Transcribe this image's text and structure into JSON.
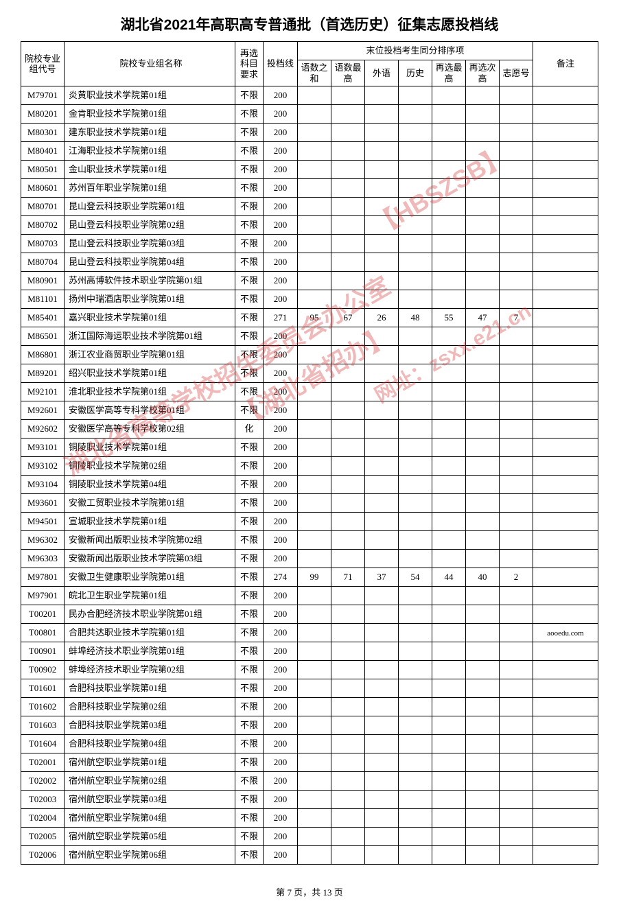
{
  "title": "湖北省2021年高职高专普通批（首选历史）征集志愿投档线",
  "headers": {
    "code": "院校专业组代号",
    "name": "院校专业组名称",
    "requirement": "再选科目要求",
    "score": "投档线",
    "tieGroup": "末位投档考生同分排序项",
    "tieSub": {
      "yushuSum": "语数之和",
      "yushuMax": "语数最高",
      "foreign": "外语",
      "history": "历史",
      "reselMax": "再选最高",
      "reselSecond": "再选次高",
      "wishNo": "志愿号"
    },
    "note": "备注"
  },
  "rows": [
    {
      "code": "M79701",
      "name": "炎黄职业技术学院第01组",
      "req": "不限",
      "score": "200",
      "c1": "",
      "c2": "",
      "c3": "",
      "c4": "",
      "c5": "",
      "c6": "",
      "c7": "",
      "note": ""
    },
    {
      "code": "M80201",
      "name": "金肯职业技术学院第01组",
      "req": "不限",
      "score": "200",
      "c1": "",
      "c2": "",
      "c3": "",
      "c4": "",
      "c5": "",
      "c6": "",
      "c7": "",
      "note": ""
    },
    {
      "code": "M80301",
      "name": "建东职业技术学院第01组",
      "req": "不限",
      "score": "200",
      "c1": "",
      "c2": "",
      "c3": "",
      "c4": "",
      "c5": "",
      "c6": "",
      "c7": "",
      "note": ""
    },
    {
      "code": "M80401",
      "name": "江海职业技术学院第01组",
      "req": "不限",
      "score": "200",
      "c1": "",
      "c2": "",
      "c3": "",
      "c4": "",
      "c5": "",
      "c6": "",
      "c7": "",
      "note": ""
    },
    {
      "code": "M80501",
      "name": "金山职业技术学院第01组",
      "req": "不限",
      "score": "200",
      "c1": "",
      "c2": "",
      "c3": "",
      "c4": "",
      "c5": "",
      "c6": "",
      "c7": "",
      "note": ""
    },
    {
      "code": "M80601",
      "name": "苏州百年职业学院第01组",
      "req": "不限",
      "score": "200",
      "c1": "",
      "c2": "",
      "c3": "",
      "c4": "",
      "c5": "",
      "c6": "",
      "c7": "",
      "note": ""
    },
    {
      "code": "M80701",
      "name": "昆山登云科技职业学院第01组",
      "req": "不限",
      "score": "200",
      "c1": "",
      "c2": "",
      "c3": "",
      "c4": "",
      "c5": "",
      "c6": "",
      "c7": "",
      "note": ""
    },
    {
      "code": "M80702",
      "name": "昆山登云科技职业学院第02组",
      "req": "不限",
      "score": "200",
      "c1": "",
      "c2": "",
      "c3": "",
      "c4": "",
      "c5": "",
      "c6": "",
      "c7": "",
      "note": ""
    },
    {
      "code": "M80703",
      "name": "昆山登云科技职业学院第03组",
      "req": "不限",
      "score": "200",
      "c1": "",
      "c2": "",
      "c3": "",
      "c4": "",
      "c5": "",
      "c6": "",
      "c7": "",
      "note": ""
    },
    {
      "code": "M80704",
      "name": "昆山登云科技职业学院第04组",
      "req": "不限",
      "score": "200",
      "c1": "",
      "c2": "",
      "c3": "",
      "c4": "",
      "c5": "",
      "c6": "",
      "c7": "",
      "note": ""
    },
    {
      "code": "M80901",
      "name": "苏州高博软件技术职业学院第01组",
      "req": "不限",
      "score": "200",
      "c1": "",
      "c2": "",
      "c3": "",
      "c4": "",
      "c5": "",
      "c6": "",
      "c7": "",
      "note": ""
    },
    {
      "code": "M81101",
      "name": "扬州中瑞酒店职业学院第01组",
      "req": "不限",
      "score": "200",
      "c1": "",
      "c2": "",
      "c3": "",
      "c4": "",
      "c5": "",
      "c6": "",
      "c7": "",
      "note": ""
    },
    {
      "code": "M85401",
      "name": "嘉兴职业技术学院第01组",
      "req": "不限",
      "score": "271",
      "c1": "95",
      "c2": "67",
      "c3": "26",
      "c4": "48",
      "c5": "55",
      "c6": "47",
      "c7": "7",
      "note": ""
    },
    {
      "code": "M86501",
      "name": "浙江国际海运职业技术学院第01组",
      "req": "不限",
      "score": "200",
      "c1": "",
      "c2": "",
      "c3": "",
      "c4": "",
      "c5": "",
      "c6": "",
      "c7": "",
      "note": ""
    },
    {
      "code": "M86801",
      "name": "浙江农业商贸职业学院第01组",
      "req": "不限",
      "score": "200",
      "c1": "",
      "c2": "",
      "c3": "",
      "c4": "",
      "c5": "",
      "c6": "",
      "c7": "",
      "note": ""
    },
    {
      "code": "M89201",
      "name": "绍兴职业技术学院第01组",
      "req": "不限",
      "score": "200",
      "c1": "",
      "c2": "",
      "c3": "",
      "c4": "",
      "c5": "",
      "c6": "",
      "c7": "",
      "note": ""
    },
    {
      "code": "M92101",
      "name": "淮北职业技术学院第01组",
      "req": "不限",
      "score": "200",
      "c1": "",
      "c2": "",
      "c3": "",
      "c4": "",
      "c5": "",
      "c6": "",
      "c7": "",
      "note": ""
    },
    {
      "code": "M92601",
      "name": "安徽医学高等专科学校第01组",
      "req": "不限",
      "score": "200",
      "c1": "",
      "c2": "",
      "c3": "",
      "c4": "",
      "c5": "",
      "c6": "",
      "c7": "",
      "note": ""
    },
    {
      "code": "M92602",
      "name": "安徽医学高等专科学校第02组",
      "req": "化",
      "score": "200",
      "c1": "",
      "c2": "",
      "c3": "",
      "c4": "",
      "c5": "",
      "c6": "",
      "c7": "",
      "note": ""
    },
    {
      "code": "M93101",
      "name": "铜陵职业技术学院第01组",
      "req": "不限",
      "score": "200",
      "c1": "",
      "c2": "",
      "c3": "",
      "c4": "",
      "c5": "",
      "c6": "",
      "c7": "",
      "note": ""
    },
    {
      "code": "M93102",
      "name": "铜陵职业技术学院第02组",
      "req": "不限",
      "score": "200",
      "c1": "",
      "c2": "",
      "c3": "",
      "c4": "",
      "c5": "",
      "c6": "",
      "c7": "",
      "note": ""
    },
    {
      "code": "M93104",
      "name": "铜陵职业技术学院第04组",
      "req": "不限",
      "score": "200",
      "c1": "",
      "c2": "",
      "c3": "",
      "c4": "",
      "c5": "",
      "c6": "",
      "c7": "",
      "note": ""
    },
    {
      "code": "M93601",
      "name": "安徽工贸职业技术学院第01组",
      "req": "不限",
      "score": "200",
      "c1": "",
      "c2": "",
      "c3": "",
      "c4": "",
      "c5": "",
      "c6": "",
      "c7": "",
      "note": ""
    },
    {
      "code": "M94501",
      "name": "宣城职业技术学院第01组",
      "req": "不限",
      "score": "200",
      "c1": "",
      "c2": "",
      "c3": "",
      "c4": "",
      "c5": "",
      "c6": "",
      "c7": "",
      "note": ""
    },
    {
      "code": "M96302",
      "name": "安徽新闻出版职业技术学院第02组",
      "req": "不限",
      "score": "200",
      "c1": "",
      "c2": "",
      "c3": "",
      "c4": "",
      "c5": "",
      "c6": "",
      "c7": "",
      "note": ""
    },
    {
      "code": "M96303",
      "name": "安徽新闻出版职业技术学院第03组",
      "req": "不限",
      "score": "200",
      "c1": "",
      "c2": "",
      "c3": "",
      "c4": "",
      "c5": "",
      "c6": "",
      "c7": "",
      "note": ""
    },
    {
      "code": "M97801",
      "name": "安徽卫生健康职业学院第01组",
      "req": "不限",
      "score": "274",
      "c1": "99",
      "c2": "71",
      "c3": "37",
      "c4": "54",
      "c5": "44",
      "c6": "40",
      "c7": "2",
      "note": ""
    },
    {
      "code": "M97901",
      "name": "皖北卫生职业学院第01组",
      "req": "不限",
      "score": "200",
      "c1": "",
      "c2": "",
      "c3": "",
      "c4": "",
      "c5": "",
      "c6": "",
      "c7": "",
      "note": ""
    },
    {
      "code": "T00201",
      "name": "民办合肥经济技术职业学院第01组",
      "req": "不限",
      "score": "200",
      "c1": "",
      "c2": "",
      "c3": "",
      "c4": "",
      "c5": "",
      "c6": "",
      "c7": "",
      "note": ""
    },
    {
      "code": "T00801",
      "name": "合肥共达职业技术学院第01组",
      "req": "不限",
      "score": "200",
      "c1": "",
      "c2": "",
      "c3": "",
      "c4": "",
      "c5": "",
      "c6": "",
      "c7": "",
      "note": "aooedu.com"
    },
    {
      "code": "T00901",
      "name": "蚌埠经济技术职业学院第01组",
      "req": "不限",
      "score": "200",
      "c1": "",
      "c2": "",
      "c3": "",
      "c4": "",
      "c5": "",
      "c6": "",
      "c7": "",
      "note": ""
    },
    {
      "code": "T00902",
      "name": "蚌埠经济技术职业学院第02组",
      "req": "不限",
      "score": "200",
      "c1": "",
      "c2": "",
      "c3": "",
      "c4": "",
      "c5": "",
      "c6": "",
      "c7": "",
      "note": ""
    },
    {
      "code": "T01601",
      "name": "合肥科技职业学院第01组",
      "req": "不限",
      "score": "200",
      "c1": "",
      "c2": "",
      "c3": "",
      "c4": "",
      "c5": "",
      "c6": "",
      "c7": "",
      "note": ""
    },
    {
      "code": "T01602",
      "name": "合肥科技职业学院第02组",
      "req": "不限",
      "score": "200",
      "c1": "",
      "c2": "",
      "c3": "",
      "c4": "",
      "c5": "",
      "c6": "",
      "c7": "",
      "note": ""
    },
    {
      "code": "T01603",
      "name": "合肥科技职业学院第03组",
      "req": "不限",
      "score": "200",
      "c1": "",
      "c2": "",
      "c3": "",
      "c4": "",
      "c5": "",
      "c6": "",
      "c7": "",
      "note": ""
    },
    {
      "code": "T01604",
      "name": "合肥科技职业学院第04组",
      "req": "不限",
      "score": "200",
      "c1": "",
      "c2": "",
      "c3": "",
      "c4": "",
      "c5": "",
      "c6": "",
      "c7": "",
      "note": ""
    },
    {
      "code": "T02001",
      "name": "宿州航空职业学院第01组",
      "req": "不限",
      "score": "200",
      "c1": "",
      "c2": "",
      "c3": "",
      "c4": "",
      "c5": "",
      "c6": "",
      "c7": "",
      "note": ""
    },
    {
      "code": "T02002",
      "name": "宿州航空职业学院第02组",
      "req": "不限",
      "score": "200",
      "c1": "",
      "c2": "",
      "c3": "",
      "c4": "",
      "c5": "",
      "c6": "",
      "c7": "",
      "note": ""
    },
    {
      "code": "T02003",
      "name": "宿州航空职业学院第03组",
      "req": "不限",
      "score": "200",
      "c1": "",
      "c2": "",
      "c3": "",
      "c4": "",
      "c5": "",
      "c6": "",
      "c7": "",
      "note": ""
    },
    {
      "code": "T02004",
      "name": "宿州航空职业学院第04组",
      "req": "不限",
      "score": "200",
      "c1": "",
      "c2": "",
      "c3": "",
      "c4": "",
      "c5": "",
      "c6": "",
      "c7": "",
      "note": ""
    },
    {
      "code": "T02005",
      "name": "宿州航空职业学院第05组",
      "req": "不限",
      "score": "200",
      "c1": "",
      "c2": "",
      "c3": "",
      "c4": "",
      "c5": "",
      "c6": "",
      "c7": "",
      "note": ""
    },
    {
      "code": "T02006",
      "name": "宿州航空职业学院第06组",
      "req": "不限",
      "score": "200",
      "c1": "",
      "c2": "",
      "c3": "",
      "c4": "",
      "c5": "",
      "c6": "",
      "c7": "",
      "note": ""
    }
  ],
  "footer": "第 7 页，共 13 页",
  "watermarks": {
    "wm1": "湖北省高等学校招生委员会办公室",
    "wm2": "【湖北省招办】",
    "wm3": "【HBSZSB】",
    "wm4": "网址：zsxx.e21.cn"
  }
}
